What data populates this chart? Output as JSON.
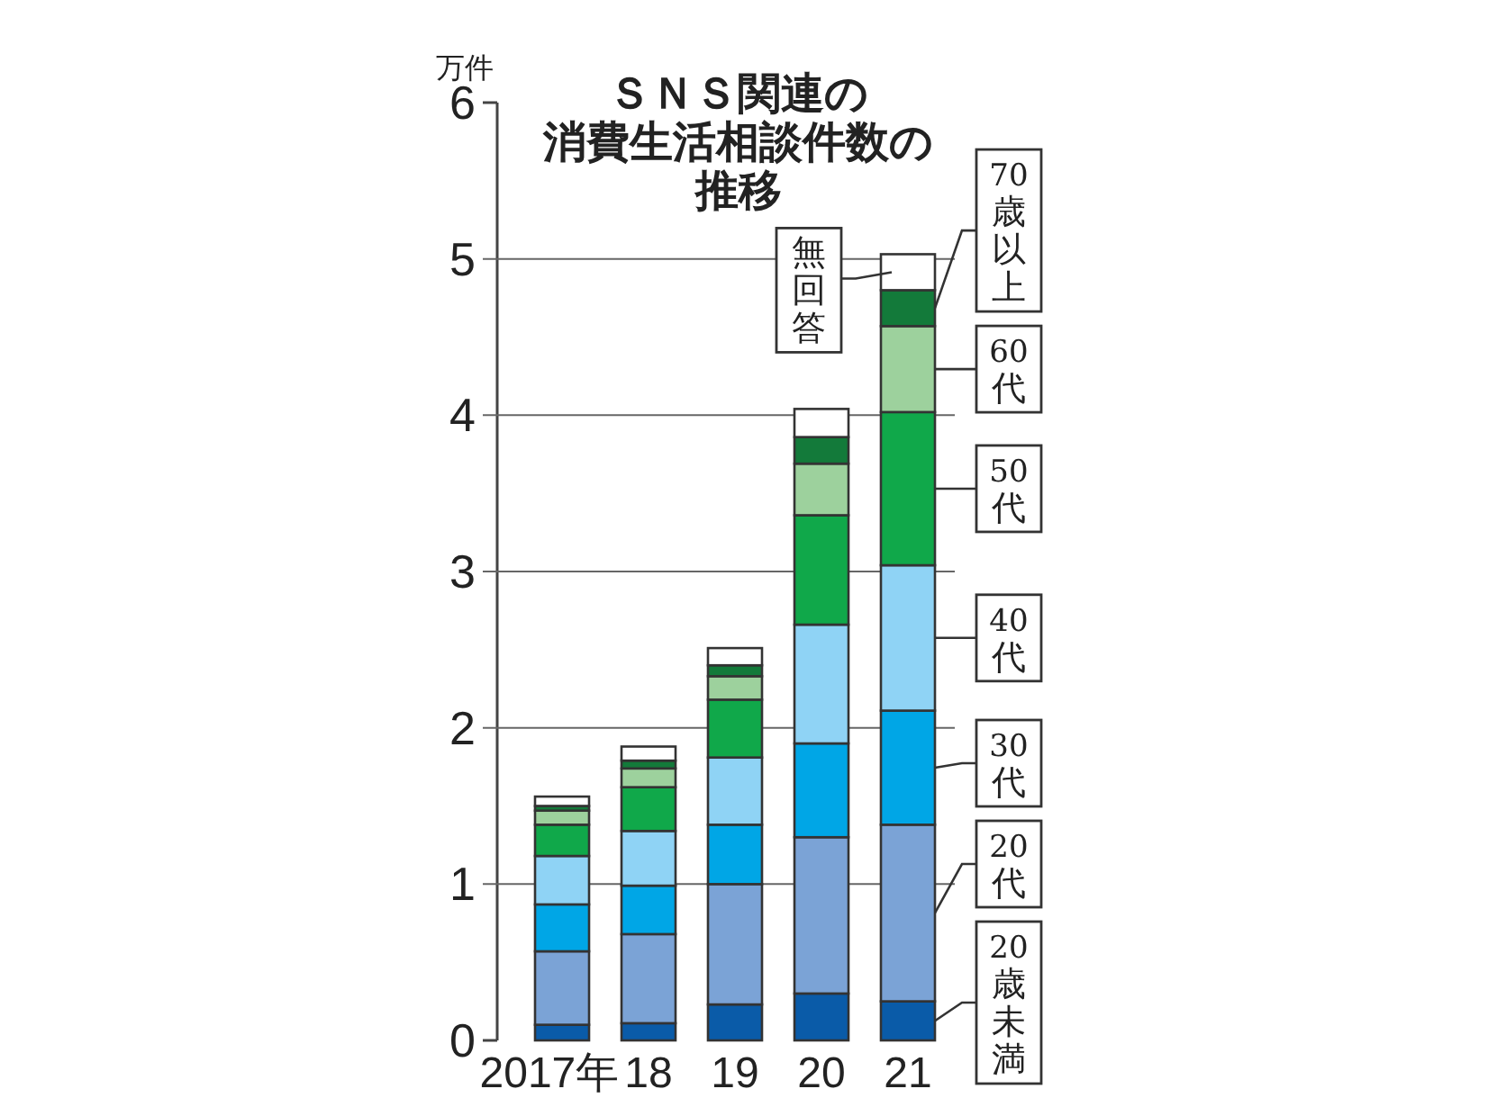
{
  "chart_data": {
    "type": "bar",
    "stacked": true,
    "title": "ＳＮＳ関連の消費生活相談件数の推移",
    "ylabel": "万件",
    "categories": [
      "2017年",
      "18",
      "19",
      "20",
      "21"
    ],
    "series": [
      {
        "name": "20歳未満",
        "color": "#0a5ba8",
        "values": [
          0.1,
          0.11,
          0.23,
          0.3,
          0.25
        ]
      },
      {
        "name": "20代",
        "color": "#7ba3d6",
        "values": [
          0.47,
          0.57,
          0.77,
          1.0,
          1.13
        ]
      },
      {
        "name": "30代",
        "color": "#00a6e6",
        "values": [
          0.3,
          0.31,
          0.38,
          0.6,
          0.73
        ]
      },
      {
        "name": "40代",
        "color": "#8fd3f5",
        "values": [
          0.31,
          0.35,
          0.43,
          0.76,
          0.93
        ]
      },
      {
        "name": "50代",
        "color": "#10a84a",
        "values": [
          0.2,
          0.28,
          0.37,
          0.7,
          0.98
        ]
      },
      {
        "name": "60代",
        "color": "#9dd19d",
        "values": [
          0.09,
          0.12,
          0.15,
          0.33,
          0.55
        ]
      },
      {
        "name": "70歳以上",
        "color": "#137a3a",
        "values": [
          0.03,
          0.05,
          0.07,
          0.17,
          0.23
        ]
      },
      {
        "name": "無回答",
        "color": "#ffffff",
        "values": [
          0.06,
          0.09,
          0.11,
          0.18,
          0.23
        ]
      }
    ],
    "ylim": [
      0,
      6
    ],
    "yticks": [
      0,
      1,
      2,
      3,
      4,
      5,
      6
    ],
    "grid": "y",
    "legend": "right"
  }
}
